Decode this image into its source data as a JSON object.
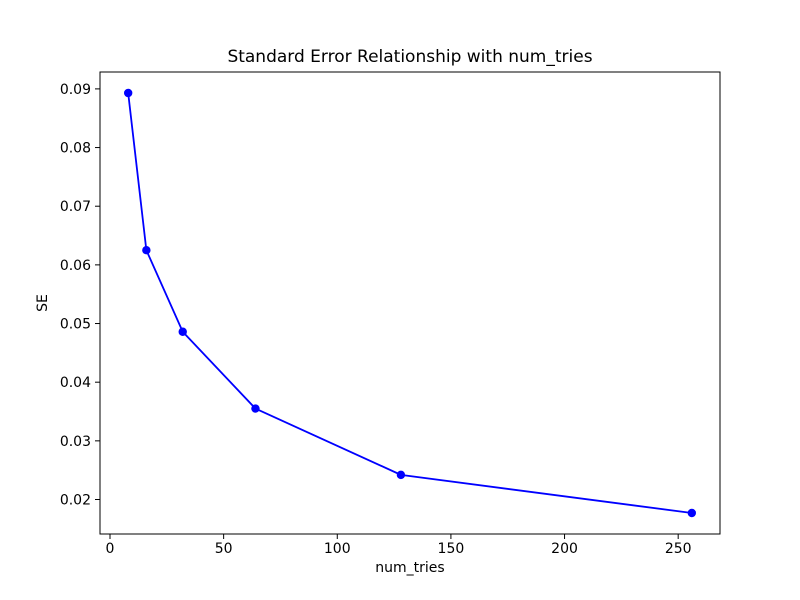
{
  "chart_data": {
    "type": "line",
    "title": "Standard Error Relationship with num_tries",
    "xlabel": "num_tries",
    "ylabel": "SE",
    "x": [
      8,
      16,
      32,
      64,
      128,
      256
    ],
    "y": [
      0.0893,
      0.0625,
      0.0486,
      0.0355,
      0.0242,
      0.0177
    ],
    "line_color": "#0000ff",
    "marker": "o",
    "marker_color": "#0000ff",
    "xlim": [
      -4.4,
      268.4
    ],
    "ylim": [
      0.01412,
      0.09288
    ],
    "xticks": [
      0,
      50,
      100,
      150,
      200,
      250
    ],
    "xtick_labels": [
      "0",
      "50",
      "100",
      "150",
      "200",
      "250"
    ],
    "yticks": [
      0.02,
      0.03,
      0.04,
      0.05,
      0.06,
      0.07,
      0.08,
      0.09
    ],
    "ytick_labels": [
      "0.02",
      "0.03",
      "0.04",
      "0.05",
      "0.06",
      "0.07",
      "0.08",
      "0.09"
    ],
    "grid": false,
    "legend_position": "none",
    "background": "#ffffff",
    "spine_color": "#000000"
  }
}
